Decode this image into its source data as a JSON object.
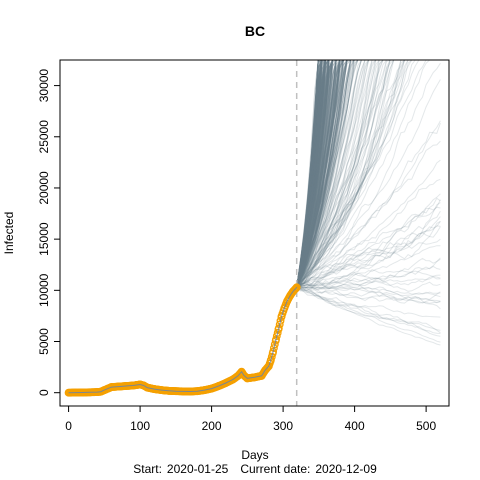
{
  "chart_data": {
    "type": "line",
    "title": "BC",
    "xlabel": "Days",
    "ylabel": "Infected",
    "xlim": [
      -12,
      532
    ],
    "ylim": [
      -1300,
      32500
    ],
    "x_ticks": [
      0,
      100,
      200,
      300,
      400,
      500
    ],
    "x_tick_labels": [
      "0",
      "100",
      "200",
      "300",
      "400",
      "500"
    ],
    "y_ticks": [
      0,
      5000,
      10000,
      15000,
      20000,
      25000,
      30000
    ],
    "y_tick_labels": [
      "0",
      "5000",
      "10000",
      "15000",
      "20000",
      "25000",
      "30000"
    ],
    "grid": false,
    "current_day_marker": 319,
    "footer": {
      "start_label": "Start:",
      "start_date": "2020-01-25",
      "current_label": "Current date:",
      "current_date": "2020-12-09"
    },
    "observed": {
      "x": [
        0,
        10,
        20,
        30,
        40,
        45,
        50,
        55,
        60,
        70,
        80,
        90,
        95,
        100,
        105,
        110,
        120,
        130,
        140,
        150,
        160,
        170,
        180,
        190,
        200,
        210,
        220,
        230,
        237,
        242,
        245,
        250,
        260,
        270,
        275,
        280,
        283,
        286,
        290,
        294,
        298,
        302,
        306,
        310,
        314,
        318,
        319
      ],
      "y": [
        0,
        10,
        20,
        40,
        60,
        100,
        250,
        400,
        550,
        600,
        650,
        700,
        750,
        800,
        700,
        500,
        350,
        250,
        180,
        150,
        130,
        120,
        150,
        250,
        400,
        650,
        950,
        1300,
        1650,
        2050,
        1700,
        1400,
        1500,
        1650,
        2200,
        2600,
        3200,
        4000,
        5200,
        6300,
        7500,
        8300,
        9000,
        9500,
        9900,
        10200,
        10300
      ],
      "color": "#f5a000"
    },
    "projections": {
      "start_x": 319,
      "start_y": 10300,
      "end_x": 520,
      "color": "#6b7f8a"
    }
  }
}
